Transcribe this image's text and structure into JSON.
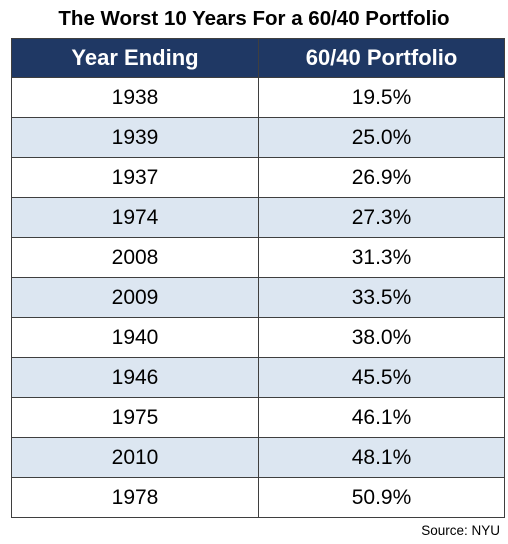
{
  "chart_data": {
    "type": "table",
    "title": "The Worst 10 Years For a 60/40 Portfolio",
    "columns": [
      "Year Ending",
      "60/40 Portfolio"
    ],
    "rows": [
      [
        "1938",
        "19.5%"
      ],
      [
        "1939",
        "25.0%"
      ],
      [
        "1937",
        "26.9%"
      ],
      [
        "1974",
        "27.3%"
      ],
      [
        "2008",
        "31.3%"
      ],
      [
        "2009",
        "33.5%"
      ],
      [
        "1940",
        "38.0%"
      ],
      [
        "1946",
        "45.5%"
      ],
      [
        "1975",
        "46.1%"
      ],
      [
        "2010",
        "48.1%"
      ],
      [
        "1978",
        "50.9%"
      ]
    ],
    "source": "Source: NYU"
  },
  "colors": {
    "header_background": "#1f3864",
    "header_text": "#ffffff",
    "alternate_row": "#dce6f1",
    "row": "#ffffff"
  }
}
